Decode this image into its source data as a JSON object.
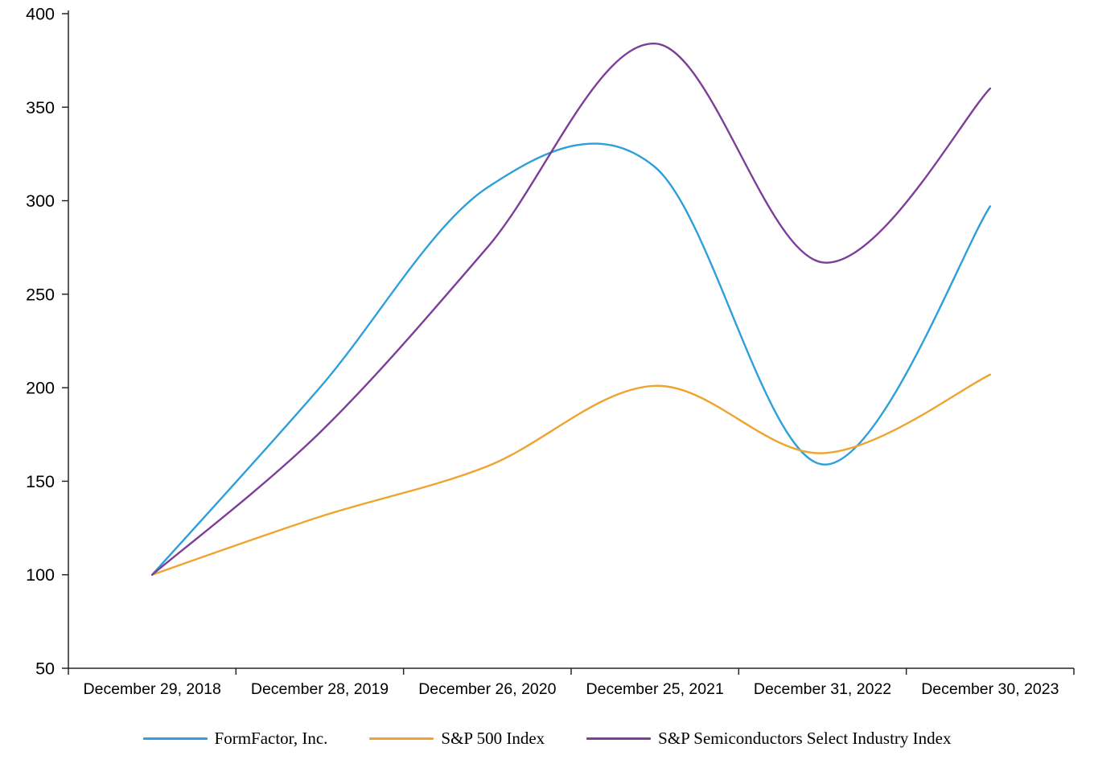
{
  "chart_data": {
    "type": "line",
    "title": "",
    "line_style": "smooth",
    "grid": false,
    "legend_position": "bottom",
    "x_categories": [
      "December 29, 2018",
      "December 28, 2019",
      "December 26, 2020",
      "December 25, 2021",
      "December 31, 2022",
      "December 30, 2023"
    ],
    "series": [
      {
        "name": "FormFactor, Inc.",
        "color": "#2E9FDA",
        "values": [
          100,
          200,
          307,
          318,
          159,
          297
        ]
      },
      {
        "name": "S&P 500 Index",
        "color": "#EFA42F",
        "values": [
          100,
          131,
          158,
          201,
          165,
          207
        ]
      },
      {
        "name": "S&P Semiconductors Select Industry Index",
        "color": "#7D3E98",
        "values": [
          100,
          176,
          275,
          384,
          267,
          360
        ]
      }
    ],
    "y_axis": {
      "min": 50,
      "max": 400,
      "tick_step": 50,
      "ticks": [
        50,
        100,
        150,
        200,
        250,
        300,
        350,
        400
      ]
    }
  }
}
